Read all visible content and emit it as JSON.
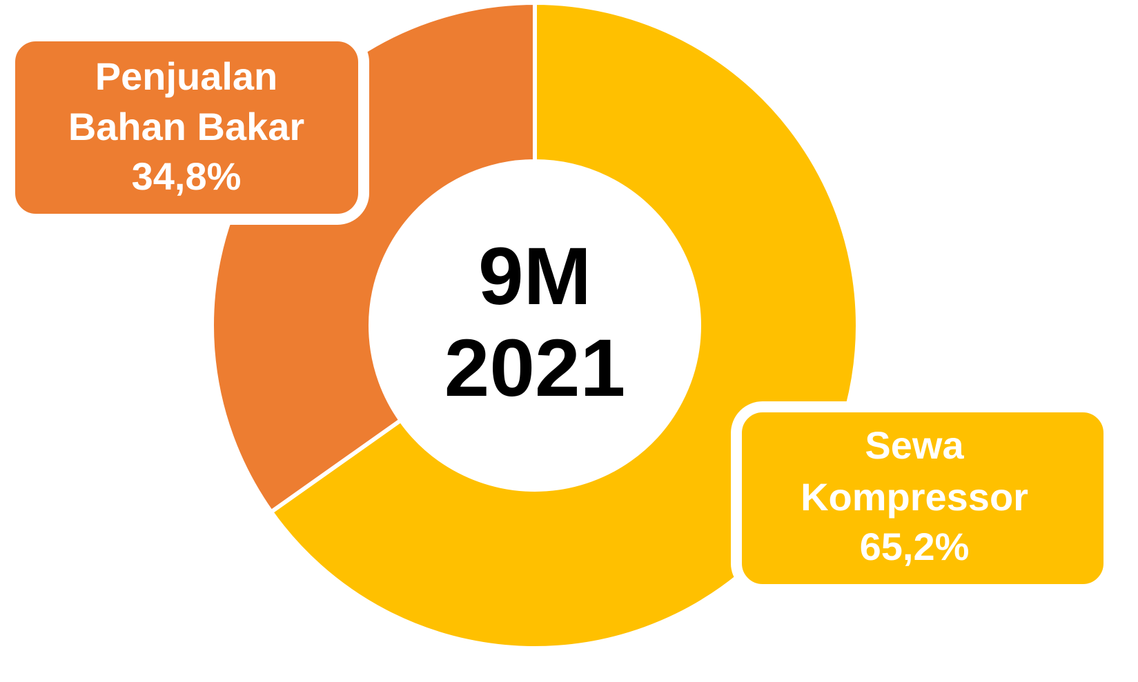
{
  "chart_data": {
    "type": "donut",
    "categories": [
      [
        "Sewa",
        "Kompressor"
      ],
      [
        "Penjualan",
        "Bahan Bakar"
      ]
    ],
    "values": [
      65.2,
      34.8
    ],
    "value_labels": [
      "65,2%",
      "34,8%"
    ],
    "colors": [
      "#FFC000",
      "#ED7D31"
    ],
    "center_label": [
      "9M",
      "2021"
    ]
  }
}
